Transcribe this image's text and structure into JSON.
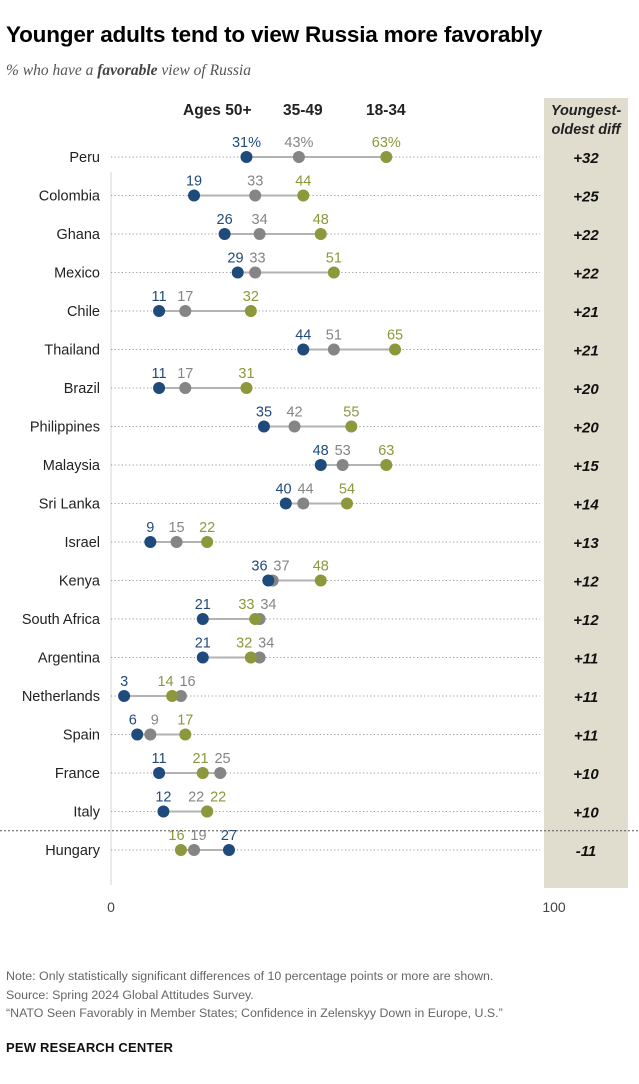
{
  "title": "Younger adults tend to view Russia more favorably",
  "subtitle": {
    "before": "% who have a ",
    "emphasis": "favorable",
    "after": " view of Russia"
  },
  "legend": [
    {
      "label": "Ages 50+",
      "color": "#1f4a7c"
    },
    {
      "label": "35-49",
      "color": "#858585"
    },
    {
      "label": "18-34",
      "color": "#8d973b"
    }
  ],
  "diff_header": [
    "Youngest-",
    "oldest diff"
  ],
  "chart_data": {
    "type": "dot",
    "title": "Younger adults tend to view Russia more favorably",
    "subtitle": "% who have a favorable view of Russia",
    "xlim": [
      0,
      100
    ],
    "x_tick_labels": [
      "0",
      "100"
    ],
    "series_order": [
      "Ages 50+",
      "35-49",
      "18-34"
    ],
    "rows": [
      {
        "country": "Peru",
        "ages_50_plus": 31,
        "ages_35_49": 43,
        "ages_18_34": 63,
        "diff": "+32",
        "labels": [
          "31%",
          "43%",
          "63%"
        ]
      },
      {
        "country": "Colombia",
        "ages_50_plus": 19,
        "ages_35_49": 33,
        "ages_18_34": 44,
        "diff": "+25",
        "labels": [
          "19",
          "33",
          "44"
        ]
      },
      {
        "country": "Ghana",
        "ages_50_plus": 26,
        "ages_35_49": 34,
        "ages_18_34": 48,
        "diff": "+22",
        "labels": [
          "26",
          "34",
          "48"
        ]
      },
      {
        "country": "Mexico",
        "ages_50_plus": 29,
        "ages_35_49": 33,
        "ages_18_34": 51,
        "diff": "+22",
        "labels": [
          "29",
          "33",
          "51"
        ]
      },
      {
        "country": "Chile",
        "ages_50_plus": 11,
        "ages_35_49": 17,
        "ages_18_34": 32,
        "diff": "+21",
        "labels": [
          "11",
          "17",
          "32"
        ]
      },
      {
        "country": "Thailand",
        "ages_50_plus": 44,
        "ages_35_49": 51,
        "ages_18_34": 65,
        "diff": "+21",
        "labels": [
          "44",
          "51",
          "65"
        ]
      },
      {
        "country": "Brazil",
        "ages_50_plus": 11,
        "ages_35_49": 17,
        "ages_18_34": 31,
        "diff": "+20",
        "labels": [
          "11",
          "17",
          "31"
        ]
      },
      {
        "country": "Philippines",
        "ages_50_plus": 35,
        "ages_35_49": 42,
        "ages_18_34": 55,
        "diff": "+20",
        "labels": [
          "35",
          "42",
          "55"
        ]
      },
      {
        "country": "Malaysia",
        "ages_50_plus": 48,
        "ages_35_49": 53,
        "ages_18_34": 63,
        "diff": "+15",
        "labels": [
          "48",
          "53",
          "63"
        ]
      },
      {
        "country": "Sri Lanka",
        "ages_50_plus": 40,
        "ages_35_49": 44,
        "ages_18_34": 54,
        "diff": "+14",
        "labels": [
          "40",
          "44",
          "54"
        ]
      },
      {
        "country": "Israel",
        "ages_50_plus": 9,
        "ages_35_49": 15,
        "ages_18_34": 22,
        "diff": "+13",
        "labels": [
          "9",
          "15",
          "22"
        ]
      },
      {
        "country": "Kenya",
        "ages_50_plus": 36,
        "ages_35_49": 37,
        "ages_18_34": 48,
        "diff": "+12",
        "labels": [
          "36",
          "37",
          "48"
        ]
      },
      {
        "country": "South Africa",
        "ages_50_plus": 21,
        "ages_35_49": 34,
        "ages_18_34": 33,
        "diff": "+12",
        "labels": [
          "21",
          "34",
          "33"
        ]
      },
      {
        "country": "Argentina",
        "ages_50_plus": 21,
        "ages_35_49": 34,
        "ages_18_34": 32,
        "diff": "+11",
        "labels": [
          "21",
          "34",
          "32"
        ]
      },
      {
        "country": "Netherlands",
        "ages_50_plus": 3,
        "ages_35_49": 16,
        "ages_18_34": 14,
        "diff": "+11",
        "labels": [
          "3",
          "16",
          "14"
        ]
      },
      {
        "country": "Spain",
        "ages_50_plus": 6,
        "ages_35_49": 9,
        "ages_18_34": 17,
        "diff": "+11",
        "labels": [
          "6",
          "9",
          "17"
        ]
      },
      {
        "country": "France",
        "ages_50_plus": 11,
        "ages_35_49": 25,
        "ages_18_34": 21,
        "diff": "+10",
        "labels": [
          "11",
          "25",
          "21"
        ]
      },
      {
        "country": "Italy",
        "ages_50_plus": 12,
        "ages_35_49": 22,
        "ages_18_34": 22,
        "diff": "+10",
        "labels": [
          "12",
          "22",
          "22"
        ]
      },
      {
        "country": "Hungary",
        "ages_50_plus": 27,
        "ages_35_49": 19,
        "ages_18_34": 16,
        "diff": "-11",
        "labels": [
          "27",
          "19",
          "16"
        ]
      }
    ]
  },
  "notes": [
    "Note: Only statistically significant differences of 10 percentage points or more are shown.",
    "Source: Spring 2024 Global Attitudes Survey.",
    "“NATO Seen Favorably in Member States; Confidence in Zelenskyy Down in Europe, U.S.”"
  ],
  "brand": "PEW RESEARCH CENTER"
}
